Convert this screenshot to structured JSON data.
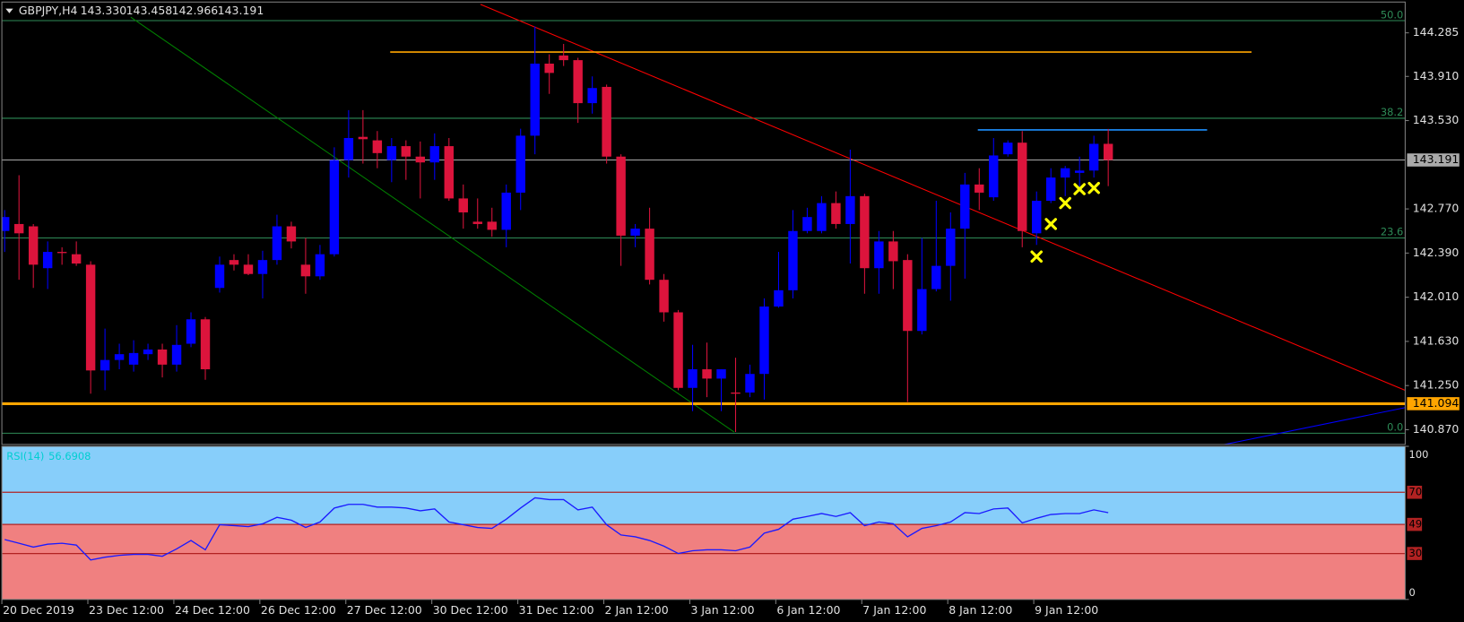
{
  "chart_data": [
    {
      "type": "candlestick",
      "title": "GBPJPY,H4",
      "ohlc_labels": [
        "143.330",
        "143.458",
        "142.966",
        "143.191"
      ],
      "categories": [
        "20 Dec 2019",
        null,
        null,
        null,
        null,
        null,
        "23 Dec 12:00",
        null,
        null,
        null,
        null,
        null,
        "24 Dec 12:00",
        null,
        null,
        null,
        null,
        null,
        "26 Dec 12:00",
        null,
        null,
        null,
        null,
        null,
        "27 Dec 12:00",
        null,
        null,
        null,
        null,
        null,
        "30 Dec 12:00",
        null,
        null,
        null,
        null,
        null,
        "31 Dec 12:00",
        null,
        null,
        null,
        null,
        null,
        "2 Jan 12:00",
        null,
        null,
        null,
        null,
        null,
        "3 Jan 12:00",
        null,
        null,
        null,
        null,
        null,
        "6 Jan 12:00",
        null,
        null,
        null,
        null,
        null,
        "7 Jan 12:00",
        null,
        null,
        null,
        null,
        null,
        "8 Jan 12:00",
        null,
        null,
        null,
        null,
        null,
        "9 Jan 12:00",
        null,
        null,
        null,
        null,
        null
      ],
      "open": [
        142.58,
        142.64,
        142.62,
        142.26,
        142.4,
        142.38,
        142.29,
        141.38,
        141.47,
        141.43,
        141.52,
        141.56,
        141.43,
        141.61,
        141.82,
        142.09,
        142.33,
        142.29,
        142.21,
        142.33,
        142.62,
        142.29,
        142.19,
        142.38,
        143.19,
        143.39,
        143.36,
        143.19,
        143.31,
        143.22,
        143.17,
        143.31,
        142.86,
        142.66,
        142.66,
        142.59,
        142.91,
        143.4,
        144.02,
        144.09,
        144.05,
        143.68,
        143.82,
        143.22,
        142.54,
        142.6,
        142.16,
        141.88,
        141.23,
        141.39,
        141.31,
        141.19,
        141.19,
        141.35,
        141.93,
        142.07,
        142.58,
        142.58,
        142.82,
        142.64,
        142.88,
        142.26,
        142.49,
        142.33,
        141.72,
        142.08,
        142.28,
        142.6,
        142.98,
        142.87,
        143.24,
        143.34,
        142.56,
        142.84,
        143.04,
        143.08,
        143.1,
        143.33
      ],
      "high": [
        142.76,
        143.06,
        142.64,
        142.49,
        142.44,
        142.49,
        142.32,
        141.74,
        141.61,
        141.64,
        141.61,
        141.61,
        141.77,
        141.88,
        141.84,
        142.36,
        142.38,
        142.38,
        142.41,
        142.72,
        142.66,
        142.52,
        142.46,
        143.3,
        143.62,
        143.62,
        143.44,
        143.38,
        143.36,
        143.35,
        143.42,
        143.38,
        142.98,
        142.86,
        142.78,
        142.98,
        143.46,
        144.34,
        144.1,
        144.19,
        144.07,
        143.91,
        143.84,
        143.24,
        142.64,
        142.78,
        142.21,
        141.9,
        141.6,
        141.62,
        141.39,
        141.49,
        141.43,
        142.0,
        142.4,
        142.76,
        142.78,
        142.88,
        142.92,
        143.28,
        142.9,
        142.58,
        142.58,
        142.38,
        142.52,
        142.84,
        142.74,
        143.08,
        143.12,
        143.38,
        143.36,
        143.44,
        142.92,
        143.12,
        143.14,
        143.22,
        143.4,
        143.458
      ],
      "low": [
        142.4,
        142.16,
        142.09,
        142.08,
        142.29,
        142.28,
        141.18,
        141.21,
        141.39,
        141.37,
        141.47,
        141.32,
        141.37,
        141.58,
        141.3,
        142.05,
        142.24,
        142.2,
        142.0,
        142.29,
        142.43,
        142.04,
        142.16,
        142.36,
        143.04,
        143.16,
        143.12,
        143.0,
        143.02,
        142.86,
        143.02,
        142.84,
        142.6,
        142.6,
        142.53,
        142.44,
        142.76,
        143.24,
        143.76,
        144.0,
        143.51,
        143.59,
        143.16,
        142.28,
        142.44,
        142.12,
        141.8,
        141.21,
        141.03,
        141.15,
        141.03,
        140.85,
        141.15,
        141.13,
        141.92,
        142.0,
        142.56,
        142.56,
        142.6,
        142.3,
        142.04,
        142.04,
        142.08,
        141.11,
        141.69,
        142.06,
        141.98,
        142.17,
        142.76,
        142.84,
        143.22,
        142.44,
        142.46,
        142.82,
        142.88,
        142.92,
        143.04,
        142.966
      ],
      "close": [
        142.7,
        142.56,
        142.29,
        142.4,
        142.39,
        142.3,
        141.38,
        141.47,
        141.52,
        141.53,
        141.56,
        141.43,
        141.6,
        141.82,
        141.39,
        142.29,
        142.29,
        142.21,
        142.33,
        142.62,
        142.49,
        142.19,
        142.38,
        143.19,
        143.38,
        143.37,
        143.25,
        143.31,
        143.22,
        143.17,
        143.31,
        142.86,
        142.74,
        142.64,
        142.59,
        142.91,
        143.4,
        144.02,
        143.94,
        144.05,
        143.68,
        143.81,
        143.22,
        142.54,
        142.6,
        142.16,
        141.88,
        141.23,
        141.39,
        141.31,
        141.39,
        141.18,
        141.35,
        141.93,
        142.07,
        142.58,
        142.7,
        142.82,
        142.64,
        142.88,
        142.26,
        142.49,
        142.32,
        141.72,
        142.08,
        142.28,
        142.6,
        142.98,
        142.91,
        143.23,
        143.34,
        142.58,
        142.84,
        143.04,
        143.12,
        143.1,
        143.33,
        143.191
      ],
      "up_color": "#0000ff",
      "down_color": "#dc143c",
      "ylim": [
        140.743,
        144.55
      ],
      "yticks": [
        144.285,
        {
          "value": 143.91,
          "label": "143.910"
        },
        {
          "value": 143.53,
          "label": "143.530"
        },
        {
          "value": 142.77,
          "label": "142.770"
        },
        {
          "value": 142.39,
          "label": "142.390"
        },
        {
          "value": 142.01,
          "label": "142.010"
        },
        {
          "value": 141.63,
          "label": "141.630"
        },
        {
          "value": 141.25,
          "label": "141.250"
        },
        {
          "value": 140.87,
          "label": "140.870"
        }
      ],
      "current_price": 143.191,
      "current_color": "#a9a9a9",
      "level": {
        "value": 141.094,
        "color": "#ffa500"
      },
      "fibo": {
        "color": "#2e8b57",
        "levels": [
          {
            "label": "50.0",
            "price": 144.39
          },
          {
            "label": "38.2",
            "price": 143.55
          },
          {
            "label": "23.6",
            "price": 142.52
          },
          {
            "label": "0.0",
            "price": 140.84
          }
        ]
      },
      "lines": [
        {
          "color": "#ff0000",
          "x": [
            33.2,
            97.7
          ],
          "y": [
            144.53,
            141.21
          ]
        },
        {
          "color": "#008000",
          "x": [
            8.8,
            50.9
          ],
          "y": [
            144.42,
            140.85
          ]
        },
        {
          "color": "#0000ff",
          "x": [
            85,
            97.7
          ],
          "y": [
            140.74,
            141.06
          ]
        },
        {
          "color": "#ffa500",
          "x": [
            26.9,
            87
          ],
          "y": [
            144.12,
            144.12
          ]
        },
        {
          "color": "#1e90ff",
          "x": [
            67.9,
            83.9
          ],
          "y": [
            143.45,
            143.45
          ]
        }
      ],
      "markers": {
        "color": "#ffff00",
        "x": [
          72,
          73,
          74,
          75,
          76
        ],
        "y": [
          142.36,
          142.64,
          142.82,
          142.94,
          142.95
        ]
      }
    },
    {
      "type": "line",
      "title": "RSI(14)",
      "values": [
        39.1,
        36.7,
        34.2,
        36.1,
        36.7,
        35.5,
        25.8,
        27.6,
        28.8,
        29.4,
        29.4,
        28.2,
        33.0,
        38.5,
        32.4,
        48.8,
        48.2,
        47.6,
        49.4,
        53.6,
        51.8,
        47.0,
        50.6,
        59.7,
        62.1,
        62.1,
        60.3,
        60.3,
        59.7,
        57.9,
        59.1,
        50.6,
        48.8,
        47.0,
        46.4,
        52.4,
        59.7,
        66.4,
        65.2,
        65.2,
        58.5,
        60.3,
        48.8,
        42.1,
        40.9,
        38.5,
        34.8,
        30.0,
        31.8,
        32.4,
        32.4,
        31.8,
        34.2,
        43.3,
        45.8,
        52.4,
        54.2,
        56.1,
        54.2,
        56.7,
        48.2,
        50.6,
        49.4,
        40.9,
        46.4,
        48.2,
        50.6,
        56.7,
        56.1,
        59.1,
        59.7,
        50.0,
        53.0,
        55.5,
        56.1,
        56.1,
        58.5,
        56.6908
      ],
      "color": "#1a1aff",
      "ylim": [
        0,
        100
      ],
      "yticks": [
        0,
        30,
        49,
        70,
        100
      ],
      "split_level": 49,
      "upper_color": "#87cefa",
      "lower_color": "#f08080",
      "level_color": "#b22222"
    }
  ]
}
